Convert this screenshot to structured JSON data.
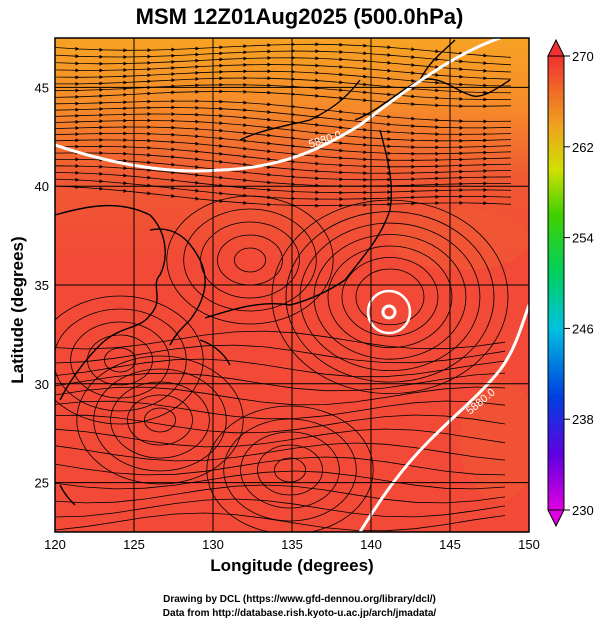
{
  "title": "MSM 12Z01Aug2025 (500.0hPa)",
  "axes": {
    "xlabel": "Longitude (degrees)",
    "ylabel": "Latitude  (degrees)",
    "xticks": [
      "120",
      "125",
      "130",
      "135",
      "140",
      "145",
      "150"
    ],
    "yticks": [
      "25",
      "30",
      "35",
      "40",
      "45"
    ],
    "xlim": [
      120,
      150
    ],
    "ylim": [
      22.5,
      47.5
    ]
  },
  "colorbar": {
    "ticks": [
      "270",
      "262",
      "254",
      "246",
      "238",
      "230"
    ],
    "range": [
      230,
      270
    ]
  },
  "contours": [
    {
      "label": "5880.0",
      "color": "#ffffff"
    },
    {
      "label": "5880.0",
      "color": "#ffffff"
    }
  ],
  "credits": {
    "line1": "Drawing by DCL (https://www.gfd-dennou.org/library/dcl/)",
    "line2": "Data from http://database.rish.kyoto-u.ac.jp/arch/jmadata/"
  },
  "colors": {
    "field_main": "#f24a36",
    "field_warm": "#f7a324",
    "frame": "#000000"
  },
  "features": {
    "typhoon_center": {
      "lon": 141.2,
      "lat": 34.4
    }
  }
}
